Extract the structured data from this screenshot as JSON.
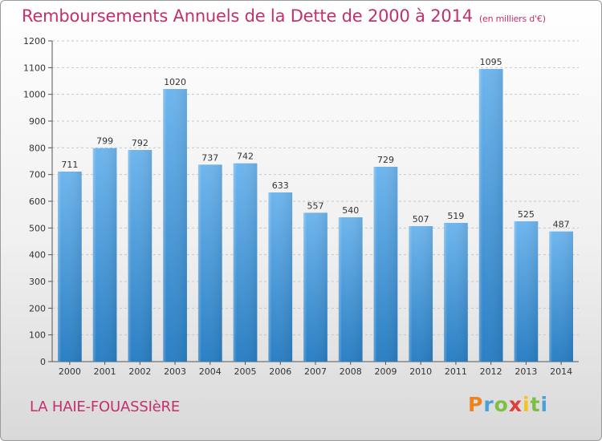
{
  "header": {
    "title": "Remboursements Annuels de la Dette de 2000 à 2014",
    "unit": "(en milliers d'€)"
  },
  "footer": {
    "commune": "LA HAIE-FOUASSIèRE",
    "brand": "Proxiti"
  },
  "colors": {
    "title": "#c2306e",
    "bar_top": "#6fb6ee",
    "bar_bottom": "#2a7fc4",
    "grid": "#c8c8c8"
  },
  "chart_data": {
    "type": "bar",
    "title": "Remboursements Annuels de la Dette de 2000 à 2014",
    "xlabel": "",
    "ylabel": "",
    "categories": [
      "2000",
      "2001",
      "2002",
      "2003",
      "2004",
      "2005",
      "2006",
      "2007",
      "2008",
      "2009",
      "2010",
      "2011",
      "2012",
      "2013",
      "2014"
    ],
    "values": [
      711,
      799,
      792,
      1020,
      737,
      742,
      633,
      557,
      540,
      729,
      507,
      519,
      1095,
      525,
      487
    ],
    "ylim": [
      0,
      1200
    ],
    "yticks": [
      0,
      100,
      200,
      300,
      400,
      500,
      600,
      700,
      800,
      900,
      1000,
      1100,
      1200
    ],
    "grid": true,
    "data_labels": true
  }
}
